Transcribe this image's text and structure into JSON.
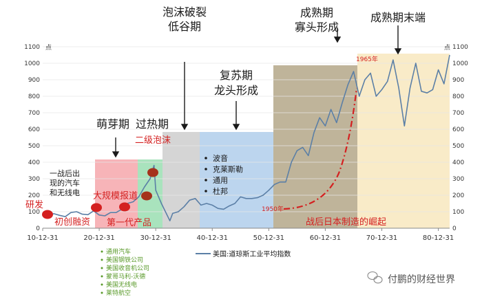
{
  "chart_data": {
    "type": "line",
    "title": "",
    "xlabel": "",
    "ylabel": "",
    "y_unit": "点",
    "ylim": [
      0,
      1100
    ],
    "y_ticks": [
      0,
      100,
      200,
      300,
      400,
      500,
      600,
      700,
      800,
      900,
      1000,
      1100
    ],
    "xlim": [
      1910,
      1982
    ],
    "x_ticks": [
      {
        "x": 1910,
        "label": "10-12-31"
      },
      {
        "x": 1920,
        "label": "20-12-31"
      },
      {
        "x": 1930,
        "label": "30-12-31"
      },
      {
        "x": 1940,
        "label": "40-12-31"
      },
      {
        "x": 1950,
        "label": "50-12-31"
      },
      {
        "x": 1960,
        "label": "60-12-31"
      },
      {
        "x": 1970,
        "label": "70-12-31"
      },
      {
        "x": 1980,
        "label": "80-12-31"
      }
    ],
    "grid": true,
    "legend": {
      "placement": "bottom",
      "label": "美国:道琼斯工业平均指数",
      "color": "#5b7fa6"
    },
    "series": [
      {
        "name": "美国:道琼斯工业平均指数",
        "color": "#5b7fa6",
        "x": [
          1910,
          1911,
          1912,
          1913,
          1914,
          1915,
          1916,
          1917,
          1918,
          1919,
          1920,
          1921,
          1922,
          1923,
          1924,
          1925,
          1926,
          1927,
          1928,
          1929,
          1929.7,
          1930,
          1931,
          1932.5,
          1933,
          1934,
          1935,
          1936,
          1937,
          1938,
          1939,
          1940,
          1941,
          1942,
          1943,
          1944,
          1945,
          1946,
          1947,
          1948,
          1949,
          1950,
          1951,
          1952,
          1953,
          1954,
          1955,
          1956,
          1957,
          1958,
          1959,
          1960,
          1961,
          1962,
          1963,
          1964,
          1965,
          1966,
          1967,
          1968,
          1969,
          1970,
          1971,
          1972,
          1973,
          1974,
          1975,
          1976,
          1977,
          1978,
          1979,
          1980,
          1981,
          1982
        ],
        "y": [
          85,
          82,
          88,
          78,
          70,
          95,
          100,
          85,
          82,
          105,
          80,
          75,
          95,
          95,
          115,
          150,
          160,
          190,
          250,
          300,
          381,
          230,
          150,
          45,
          90,
          100,
          130,
          170,
          180,
          140,
          150,
          140,
          120,
          115,
          135,
          150,
          190,
          180,
          180,
          185,
          200,
          230,
          265,
          280,
          280,
          400,
          470,
          490,
          440,
          580,
          670,
          620,
          720,
          640,
          760,
          870,
          950,
          800,
          900,
          940,
          800,
          840,
          890,
          1020,
          850,
          620,
          850,
          1000,
          830,
          820,
          840,
          960,
          875,
          1050
        ]
      }
    ],
    "phase_labels": [
      {
        "label": "萌芽期",
        "color": "#1a1a1a"
      },
      {
        "label": "过热期",
        "color": "#1a1a1a"
      },
      {
        "label": "泡沫破裂",
        "color": "#1a1a1a"
      },
      {
        "label": "低谷期",
        "color": "#1a1a1a"
      },
      {
        "label": "复苏期",
        "color": "#1a1a1a"
      },
      {
        "label": "龙头形成",
        "color": "#1a1a1a"
      },
      {
        "label": "成熟期",
        "color": "#1a1a1a"
      },
      {
        "label": "寡头形成",
        "color": "#1a1a1a"
      },
      {
        "label": "成熟期末端",
        "color": "#1a1a1a"
      }
    ],
    "event_labels": [
      {
        "label": "研发",
        "color": "#d42020"
      },
      {
        "label": "初创融资",
        "color": "#d42020"
      },
      {
        "label": "大规模报道",
        "color": "#d42020"
      },
      {
        "label": "第一代产品",
        "color": "#d42020"
      },
      {
        "label": "二级泡沫",
        "color": "#d42020"
      },
      {
        "label": "1950年",
        "color": "#d42020"
      },
      {
        "label": "1965年",
        "color": "#d42020"
      },
      {
        "label": "战后日本制造的崛起",
        "color": "#d42020"
      }
    ],
    "side_note": [
      "一战后出",
      "现的汽车",
      "和无线电"
    ],
    "companies": [
      "通用汽车",
      "美国钢铁公司",
      "美国收音机公司",
      "蒙哥马利-沃德",
      "美国无线电",
      "莱特航空"
    ],
    "recovery_companies": [
      "波音",
      "克莱斯勒",
      "通用",
      "杜邦"
    ],
    "watermark": "付鹏的财经世界",
    "colors": {
      "sprout": "#f7b4b8",
      "overheat": "#a9e3bd",
      "burst": "#d5d5d5",
      "recovery": "#bcd5ee",
      "mature": "#bfb49a",
      "mature_end": "#f9ebc8",
      "red": "#d42020",
      "company_green": "#5a9a2a"
    }
  }
}
